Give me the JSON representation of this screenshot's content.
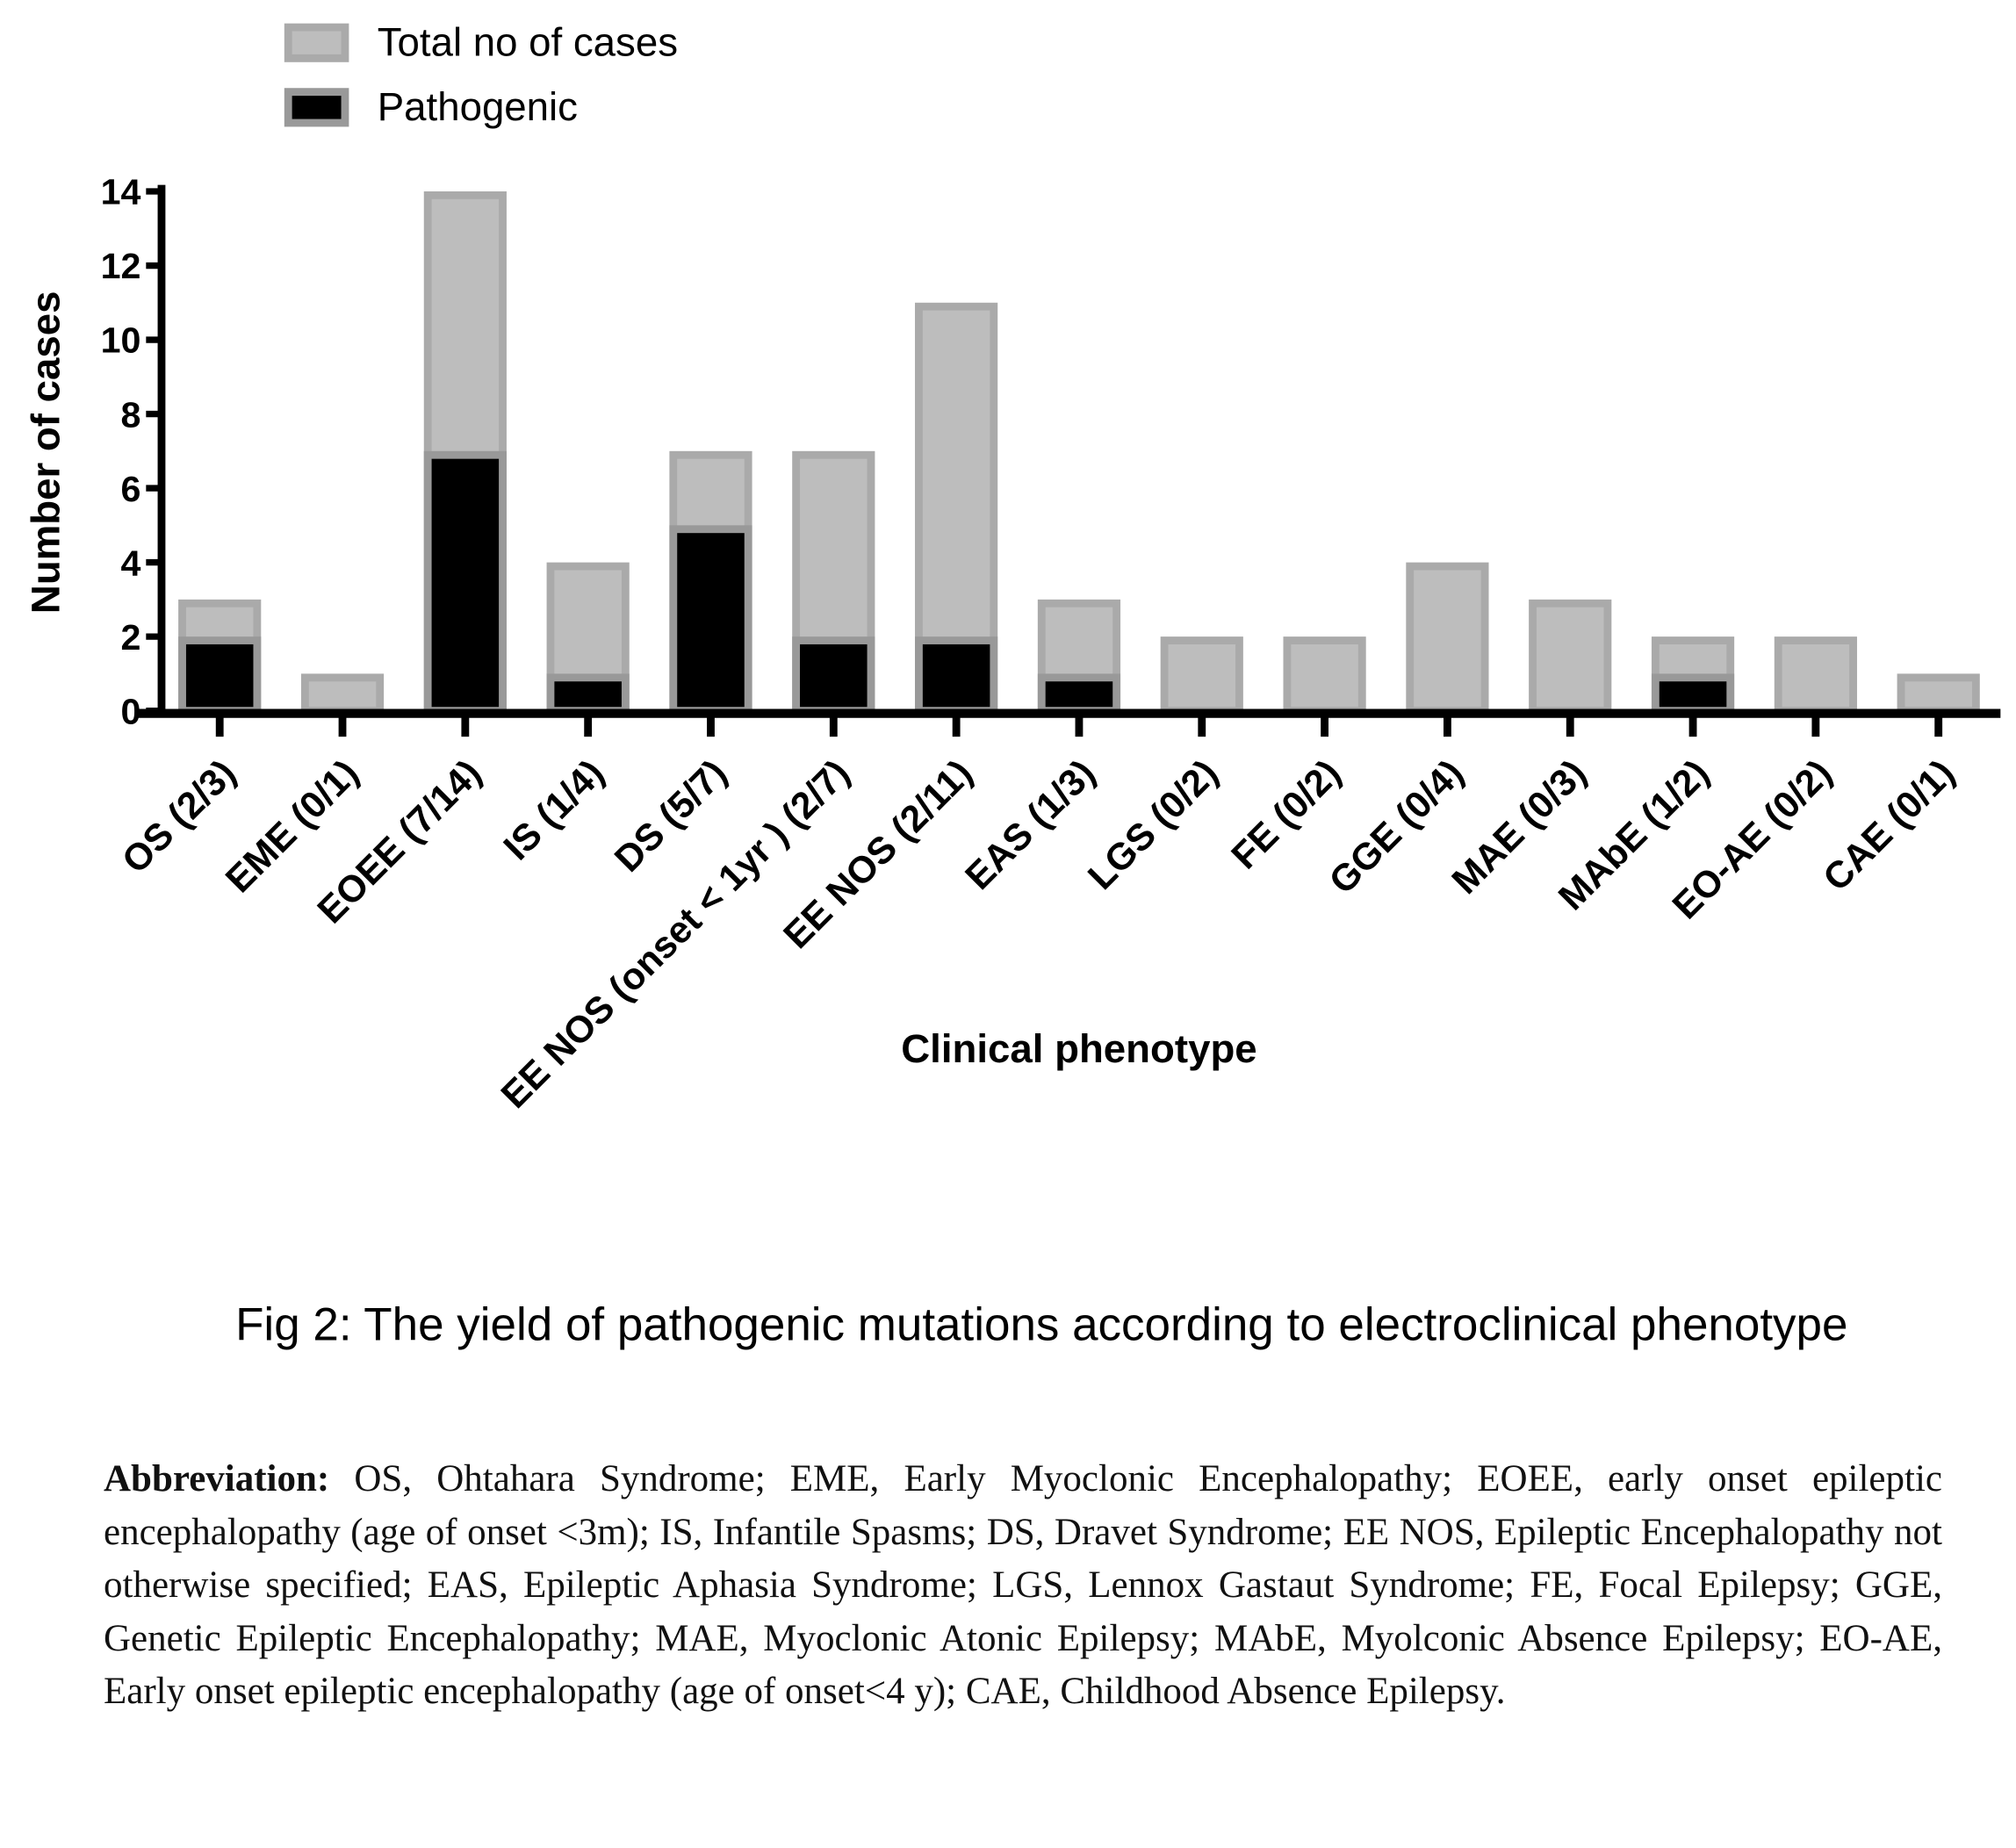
{
  "chart_data": {
    "type": "bar",
    "title": "",
    "xlabel": "Clinical phenotype",
    "ylabel": "Number of cases",
    "ylim": [
      0,
      14
    ],
    "yticks": [
      0,
      2,
      4,
      6,
      8,
      10,
      12,
      14
    ],
    "legend_position": "top-left",
    "categories": [
      "OS (2/3)",
      "EME (0/1)",
      "EOEE (7/14)",
      "IS (1/4)",
      "DS (5/7)",
      "EE NOS (onset < 1yr ) (2/7)",
      "EE NOS (2/11)",
      "EAS (1/3)",
      "LGS (0/2)",
      "FE (0/2)",
      "GGE (0/4)",
      "MAE (0/3)",
      "MAbE (1/2)",
      "EO-AE (0/2)",
      "CAE (0/1)"
    ],
    "series": [
      {
        "name": "Total no of cases",
        "color": "#bdbdbd",
        "values": [
          3,
          1,
          14,
          4,
          7,
          7,
          11,
          3,
          2,
          2,
          4,
          3,
          2,
          2,
          1
        ]
      },
      {
        "name": "Pathogenic",
        "color": "#000000",
        "values": [
          2,
          0,
          7,
          1,
          5,
          2,
          2,
          1,
          0,
          0,
          0,
          0,
          1,
          0,
          0
        ]
      }
    ]
  },
  "caption": "Fig 2: The yield of pathogenic mutations according to electroclinical phenotype",
  "abbreviation": {
    "label": "Abbreviation:",
    "text": " OS, Ohtahara Syndrome; EME, Early Myoclonic Encephalopathy; EOEE, early onset epileptic encephalopathy (age of onset <3m); IS, Infantile Spasms; DS, Dravet Syndrome; EE NOS, Epileptic Encephalopathy not otherwise specified; EAS, Epileptic Aphasia Syndrome; LGS, Lennox Gastaut Syndrome; FE, Focal Epilepsy; GGE, Genetic Epileptic Encephalopathy; MAE, Myoclonic Atonic Epilepsy; MAbE, Myolconic Absence Epilepsy; EO-AE, Early onset epileptic encephalopathy (age of onset<4 y); CAE, Childhood Absence Epilepsy."
  }
}
